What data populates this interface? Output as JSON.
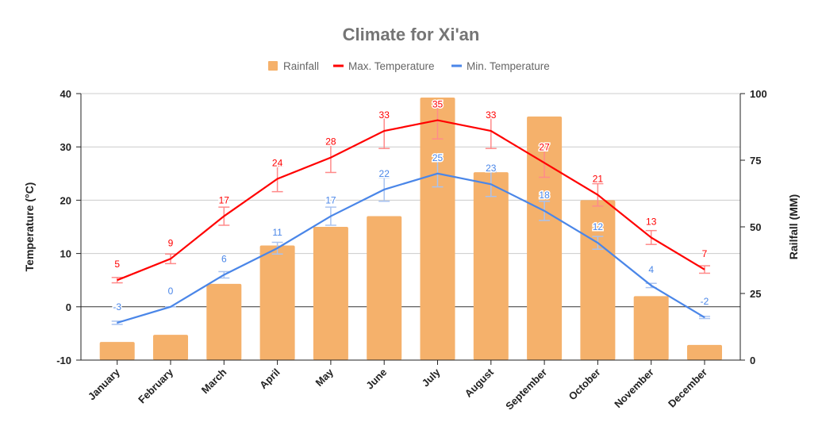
{
  "chart_data": {
    "type": "bar+line",
    "title": "Climate for Xi'an",
    "categories": [
      "January",
      "February",
      "March",
      "April",
      "May",
      "June",
      "July",
      "August",
      "September",
      "October",
      "November",
      "December"
    ],
    "series": [
      {
        "name": "Rainfall",
        "type": "bar",
        "axis": "right",
        "color": "#f5b16b",
        "values": [
          6.8,
          9.5,
          28.6,
          43,
          50,
          54,
          98.5,
          70.5,
          91.4,
          60,
          24,
          5.7
        ]
      },
      {
        "name": "Max. Temperature",
        "type": "line",
        "axis": "left",
        "color": "#ff0000",
        "error_color": "#ff8a8a",
        "error_percent": 10,
        "values": [
          5,
          9,
          17,
          24,
          28,
          33,
          35,
          33,
          27,
          21,
          13,
          7
        ]
      },
      {
        "name": "Min. Temperature",
        "type": "line",
        "axis": "left",
        "color": "#4a86e8",
        "error_color": "#a9c3f0",
        "error_percent": 10,
        "values": [
          -3,
          0,
          6,
          11,
          17,
          22,
          25,
          23,
          18,
          12,
          4,
          -2
        ]
      }
    ],
    "ylabel": "Temperature (°C)",
    "ylim": [
      -10,
      40
    ],
    "yticks": [
      -10,
      0,
      10,
      20,
      30,
      40
    ],
    "y2label": "Railfall (MM)",
    "y2lim": [
      0,
      100
    ],
    "y2ticks": [
      0,
      25,
      50,
      75,
      100
    ],
    "grid": true,
    "legend": "top"
  }
}
